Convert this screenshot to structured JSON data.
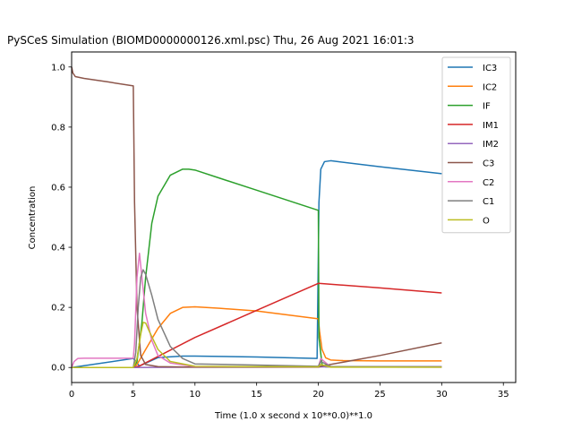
{
  "chart_data": {
    "type": "line",
    "title": "PySCeS Simulation (BIOMD0000000126.xml.psc) Thu, 26 Aug 2021 16:01:3",
    "xlabel": "Time (1.0 x second x 10**0.0)**1.0",
    "ylabel": "Concentration",
    "xlim": [
      0,
      36
    ],
    "ylim": [
      -0.05,
      1.05
    ],
    "xticks": [
      0,
      5,
      10,
      15,
      20,
      25,
      30,
      35
    ],
    "xtick_labels": [
      "0",
      "5",
      "10",
      "15",
      "20",
      "25",
      "30",
      "35"
    ],
    "yticks": [
      0.0,
      0.2,
      0.4,
      0.6,
      0.8,
      1.0
    ],
    "ytick_labels": [
      "0.0",
      "0.2",
      "0.4",
      "0.6",
      "0.8",
      "1.0"
    ],
    "grid": false,
    "legend_position": "top-right",
    "series": [
      {
        "name": "IC3",
        "color": "#1f77b4",
        "x": [
          0,
          5,
          5.5,
          7,
          9,
          10,
          15,
          19.9,
          20.05,
          20.2,
          20.5,
          21,
          25,
          30
        ],
        "y": [
          0,
          0.03,
          0.005,
          0.033,
          0.038,
          0.038,
          0.035,
          0.03,
          0.55,
          0.66,
          0.685,
          0.688,
          0.668,
          0.645
        ]
      },
      {
        "name": "IC2",
        "color": "#ff7f0e",
        "x": [
          0,
          5,
          5.3,
          6,
          7,
          8,
          9,
          10,
          12,
          15,
          20,
          20.1,
          20.3,
          20.6,
          21,
          22,
          25,
          30
        ],
        "y": [
          0,
          0,
          0.01,
          0.06,
          0.13,
          0.18,
          0.2,
          0.202,
          0.197,
          0.188,
          0.162,
          0.12,
          0.06,
          0.032,
          0.025,
          0.023,
          0.022,
          0.022
        ]
      },
      {
        "name": "IF",
        "color": "#2ca02c",
        "x": [
          0,
          5,
          5.3,
          5.7,
          6,
          6.5,
          7,
          8,
          9,
          9.5,
          10,
          12,
          15,
          20,
          20.05,
          20.3,
          20.6,
          30
        ],
        "y": [
          0,
          0,
          0.02,
          0.15,
          0.3,
          0.48,
          0.57,
          0.64,
          0.66,
          0.66,
          0.657,
          0.63,
          0.59,
          0.523,
          0.1,
          0.01,
          0.002,
          0.002
        ]
      },
      {
        "name": "IM1",
        "color": "#d62728",
        "x": [
          0,
          5,
          5.5,
          10,
          15,
          20,
          25,
          30
        ],
        "y": [
          0,
          0,
          0.005,
          0.1,
          0.19,
          0.28,
          0.265,
          0.248
        ]
      },
      {
        "name": "IM2",
        "color": "#9467bd",
        "x": [
          0,
          5,
          10,
          20,
          30
        ],
        "y": [
          0,
          0,
          0.001,
          0.002,
          0.003
        ]
      },
      {
        "name": "C3",
        "color": "#8c564b",
        "x": [
          0,
          0.1,
          0.3,
          1,
          3,
          5,
          5.1,
          5.3,
          5.6,
          6,
          7,
          10,
          20,
          20.3,
          25,
          30
        ],
        "y": [
          1.0,
          0.98,
          0.968,
          0.962,
          0.95,
          0.937,
          0.55,
          0.2,
          0.04,
          0.01,
          0.003,
          0.001,
          0.001,
          0.005,
          0.04,
          0.082
        ]
      },
      {
        "name": "C2",
        "color": "#e377c2",
        "x": [
          0,
          0.2,
          0.5,
          1,
          5,
          5.1,
          5.3,
          5.5,
          5.7,
          6,
          6.5,
          7,
          8,
          10,
          20,
          20.2,
          21,
          30
        ],
        "y": [
          0,
          0.02,
          0.03,
          0.031,
          0.031,
          0.08,
          0.3,
          0.38,
          0.3,
          0.18,
          0.09,
          0.04,
          0.015,
          0.003,
          0.002,
          0.03,
          0.002,
          0.001
        ]
      },
      {
        "name": "C1",
        "color": "#7f7f7f",
        "x": [
          0,
          5,
          5.2,
          5.4,
          5.6,
          5.8,
          6,
          6.5,
          7,
          8,
          9,
          10,
          20,
          20.2,
          21,
          30
        ],
        "y": [
          0,
          0,
          0.05,
          0.2,
          0.3,
          0.325,
          0.31,
          0.24,
          0.16,
          0.07,
          0.03,
          0.012,
          0.004,
          0.02,
          0.003,
          0.002
        ]
      },
      {
        "name": "O",
        "color": "#bcbd22",
        "x": [
          0,
          5,
          5.3,
          5.6,
          5.8,
          6,
          6.3,
          7,
          8,
          10,
          20,
          20.2,
          21,
          30
        ],
        "y": [
          0,
          0,
          0.03,
          0.11,
          0.15,
          0.148,
          0.12,
          0.06,
          0.02,
          0.004,
          0.002,
          0.01,
          0.001,
          0.001
        ]
      }
    ]
  }
}
